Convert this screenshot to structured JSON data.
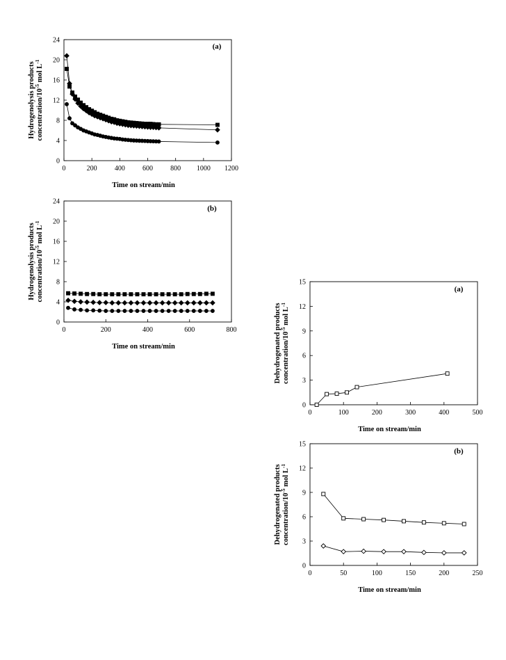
{
  "chart_data": [
    {
      "type": "line",
      "panel_label": "(a)",
      "xlabel": "Time on stream/min",
      "ylabel_line1": "Hydrogenolysis products",
      "ylabel_line2_pre": "concentration/10",
      "ylabel_sup1": "-5",
      "ylabel_line2_mid": " mol L",
      "ylabel_sup2": "-1",
      "xlim": [
        0,
        1200
      ],
      "ylim": [
        0,
        24
      ],
      "xticks": [
        "0",
        "200",
        "400",
        "600",
        "800",
        "1000",
        "1200"
      ],
      "yticks": [
        "0",
        "4",
        "8",
        "12",
        "16",
        "20",
        "24"
      ],
      "series": [
        {
          "marker": "square-filled",
          "x": [
            20,
            40,
            60,
            80,
            100,
            120,
            140,
            160,
            180,
            200,
            220,
            240,
            260,
            280,
            300,
            320,
            340,
            360,
            380,
            400,
            420,
            440,
            460,
            480,
            500,
            520,
            540,
            560,
            580,
            600,
            620,
            640,
            660,
            680,
            1100
          ],
          "y": [
            18.2,
            14.7,
            13.5,
            12.7,
            12.1,
            11.5,
            11.0,
            10.6,
            10.2,
            9.9,
            9.6,
            9.3,
            9.1,
            8.9,
            8.7,
            8.5,
            8.3,
            8.2,
            8.0,
            7.9,
            7.8,
            7.7,
            7.6,
            7.55,
            7.5,
            7.45,
            7.4,
            7.35,
            7.3,
            7.3,
            7.3,
            7.25,
            7.2,
            7.2,
            7.1
          ]
        },
        {
          "marker": "diamond-filled",
          "x": [
            20,
            40,
            60,
            80,
            100,
            120,
            140,
            160,
            180,
            200,
            220,
            240,
            260,
            280,
            300,
            320,
            340,
            360,
            380,
            400,
            420,
            440,
            460,
            480,
            500,
            520,
            540,
            560,
            580,
            600,
            620,
            640,
            660,
            680,
            1100
          ],
          "y": [
            20.8,
            15.3,
            13.2,
            12.2,
            11.4,
            10.8,
            10.3,
            9.9,
            9.5,
            9.2,
            8.9,
            8.7,
            8.5,
            8.3,
            8.1,
            7.9,
            7.7,
            7.6,
            7.4,
            7.3,
            7.2,
            7.1,
            7.0,
            6.95,
            6.9,
            6.85,
            6.8,
            6.75,
            6.7,
            6.65,
            6.6,
            6.6,
            6.55,
            6.5,
            6.1
          ]
        },
        {
          "marker": "circle-filled",
          "x": [
            20,
            40,
            60,
            80,
            100,
            120,
            140,
            160,
            180,
            200,
            220,
            240,
            260,
            280,
            300,
            320,
            340,
            360,
            380,
            400,
            420,
            440,
            460,
            480,
            500,
            520,
            540,
            560,
            580,
            600,
            620,
            640,
            660,
            680,
            1100
          ],
          "y": [
            11.2,
            8.4,
            7.4,
            7.0,
            6.6,
            6.3,
            6.0,
            5.8,
            5.6,
            5.4,
            5.2,
            5.1,
            4.95,
            4.8,
            4.7,
            4.6,
            4.5,
            4.4,
            4.35,
            4.3,
            4.2,
            4.15,
            4.1,
            4.05,
            4.0,
            3.98,
            3.95,
            3.93,
            3.9,
            3.88,
            3.86,
            3.84,
            3.82,
            3.8,
            3.6
          ]
        }
      ]
    },
    {
      "type": "line",
      "panel_label": "(b)",
      "xlabel": "Time on stream/min",
      "ylabel_line1": "Hydrogenolysis products",
      "ylabel_line2_pre": "concentration/10",
      "ylabel_sup1": "-5",
      "ylabel_line2_mid": " mol L",
      "ylabel_sup2": "-1",
      "xlim": [
        0,
        800
      ],
      "ylim": [
        0,
        24
      ],
      "xticks": [
        "0",
        "200",
        "400",
        "600",
        "800"
      ],
      "yticks": [
        "0",
        "4",
        "8",
        "12",
        "16",
        "20",
        "24"
      ],
      "series": [
        {
          "marker": "square-filled",
          "x": [
            20,
            50,
            80,
            110,
            140,
            170,
            200,
            230,
            260,
            290,
            320,
            350,
            380,
            410,
            440,
            470,
            500,
            530,
            560,
            590,
            620,
            650,
            680,
            710
          ],
          "y": [
            5.7,
            5.65,
            5.6,
            5.55,
            5.55,
            5.5,
            5.5,
            5.5,
            5.5,
            5.5,
            5.5,
            5.5,
            5.5,
            5.5,
            5.5,
            5.5,
            5.5,
            5.5,
            5.5,
            5.55,
            5.55,
            5.55,
            5.6,
            5.6
          ]
        },
        {
          "marker": "diamond-filled",
          "x": [
            20,
            50,
            80,
            110,
            140,
            170,
            200,
            230,
            260,
            290,
            320,
            350,
            380,
            410,
            440,
            470,
            500,
            530,
            560,
            590,
            620,
            650,
            680,
            710
          ],
          "y": [
            4.3,
            4.1,
            4.0,
            3.95,
            3.9,
            3.85,
            3.85,
            3.8,
            3.8,
            3.8,
            3.8,
            3.8,
            3.8,
            3.8,
            3.8,
            3.8,
            3.8,
            3.8,
            3.8,
            3.8,
            3.8,
            3.8,
            3.8,
            3.8
          ]
        },
        {
          "marker": "circle-filled",
          "x": [
            20,
            50,
            80,
            110,
            140,
            170,
            200,
            230,
            260,
            290,
            320,
            350,
            380,
            410,
            440,
            470,
            500,
            530,
            560,
            590,
            620,
            650,
            680,
            710
          ],
          "y": [
            2.8,
            2.5,
            2.4,
            2.3,
            2.3,
            2.25,
            2.2,
            2.2,
            2.2,
            2.2,
            2.2,
            2.2,
            2.2,
            2.2,
            2.2,
            2.2,
            2.2,
            2.2,
            2.2,
            2.2,
            2.2,
            2.2,
            2.2,
            2.2
          ]
        }
      ]
    },
    {
      "type": "line",
      "panel_label": "(a)",
      "xlabel": "Time on stream/min",
      "ylabel_line1": "Dehydrogenated products",
      "ylabel_line2_pre": "concentration/10",
      "ylabel_sup1": "-5",
      "ylabel_line2_mid": " mol L",
      "ylabel_sup2": "-1",
      "xlim": [
        0,
        500
      ],
      "ylim": [
        0,
        15
      ],
      "xticks": [
        "0",
        "100",
        "200",
        "300",
        "400",
        "500"
      ],
      "yticks": [
        "0",
        "3",
        "6",
        "9",
        "12",
        "15"
      ],
      "series": [
        {
          "marker": "square-open",
          "x": [
            20,
            50,
            80,
            110,
            140,
            410
          ],
          "y": [
            0.0,
            1.3,
            1.35,
            1.5,
            2.15,
            3.8
          ]
        }
      ]
    },
    {
      "type": "line",
      "panel_label": "(b)",
      "xlabel": "Time on stream/min",
      "ylabel_line1": "Dehydrogenated products",
      "ylabel_line2_pre": "concentration/10",
      "ylabel_sup1": "-5",
      "ylabel_line2_mid": " mol L",
      "ylabel_sup2": "-1",
      "xlim": [
        0,
        250
      ],
      "ylim": [
        0,
        15
      ],
      "xticks": [
        "0",
        "50",
        "100",
        "150",
        "200",
        "250"
      ],
      "yticks": [
        "0",
        "3",
        "6",
        "9",
        "12",
        "15"
      ],
      "series": [
        {
          "marker": "square-open",
          "x": [
            20,
            50,
            80,
            110,
            140,
            170,
            200,
            230
          ],
          "y": [
            8.8,
            5.8,
            5.7,
            5.6,
            5.45,
            5.3,
            5.2,
            5.1
          ]
        },
        {
          "marker": "diamond-open",
          "x": [
            20,
            50,
            80,
            110,
            140,
            170,
            200,
            230
          ],
          "y": [
            2.4,
            1.7,
            1.75,
            1.7,
            1.7,
            1.6,
            1.55,
            1.55
          ]
        }
      ]
    }
  ]
}
